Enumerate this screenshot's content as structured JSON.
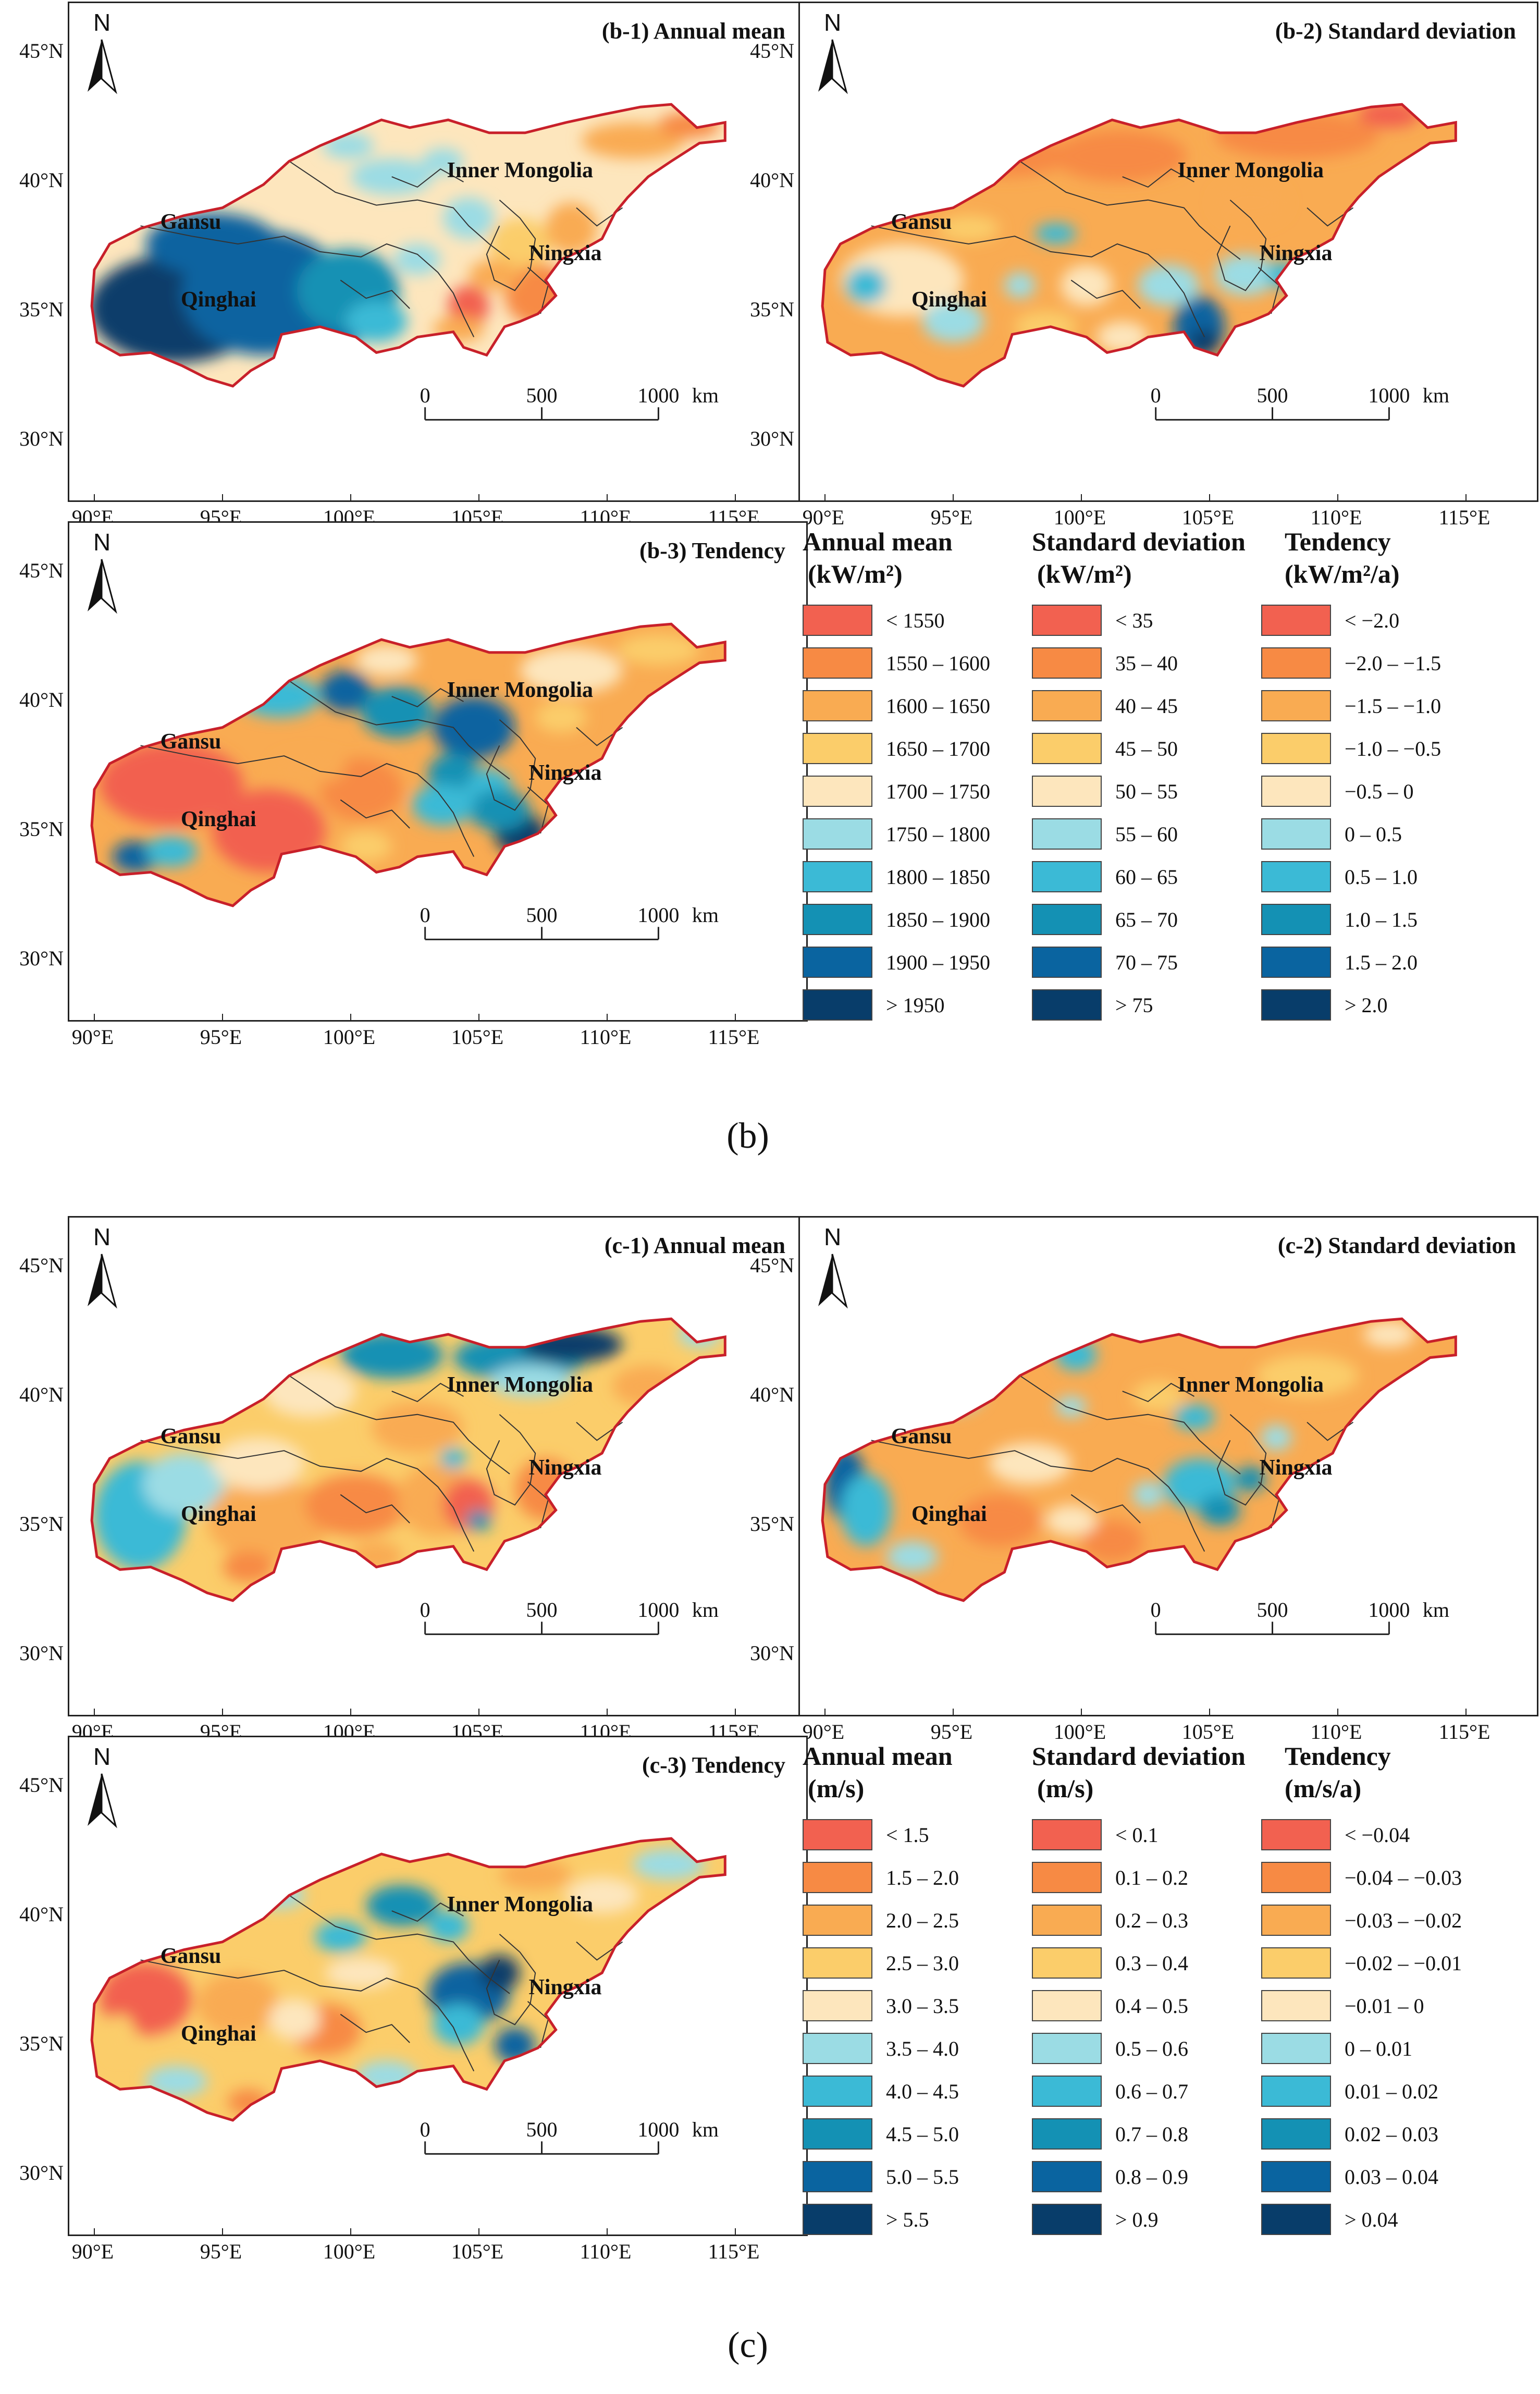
{
  "palette": [
    "#f26150",
    "#f78a44",
    "#f9ab52",
    "#fbcd6a",
    "#fde6bd",
    "#9bdce4",
    "#3bbad6",
    "#1491b4",
    "#0a64a0",
    "#083d6a"
  ],
  "boundary_color": "#c8202a",
  "sections": [
    {
      "caption": "(b)",
      "panels": [
        {
          "title": "(b-1)  Annual mean",
          "field": "annual_mean",
          "scale": [
            "0",
            "500",
            "1000",
            "km"
          ]
        },
        {
          "title": "(b-2)  Standard deviation",
          "field": "std_dev",
          "scale": [
            "0",
            "500",
            "1000",
            "km"
          ]
        },
        {
          "title": "(b-3)  Tendency",
          "field": "tendency",
          "scale": [
            "0",
            "500",
            "1000",
            "km"
          ]
        }
      ],
      "legend": [
        {
          "head1": "Annual mean",
          "head2": "(kW/m²)",
          "labels": [
            "< 1550",
            "1550 – 1600",
            "1600 – 1650",
            "1650 – 1700",
            "1700 – 1750",
            "1750 – 1800",
            "1800 – 1850",
            "1850 – 1900",
            "1900 – 1950",
            "> 1950"
          ]
        },
        {
          "head1": "Standard deviation",
          "head2": "(kW/m²)",
          "labels": [
            "< 35",
            "35 – 40",
            "40 – 45",
            "45 – 50",
            "50 – 55",
            "55 – 60",
            "60 – 65",
            "65 – 70",
            "70 – 75",
            "> 75"
          ]
        },
        {
          "head1": "Tendency",
          "head2": "(kW/m²/a)",
          "labels": [
            "< −2.0",
            "−2.0 – −1.5",
            "−1.5 – −1.0",
            "−1.0 – −0.5",
            "−0.5 – 0",
            "0 – 0.5",
            "0.5 – 1.0",
            "1.0 – 1.5",
            "1.5 – 2.0",
            "> 2.0"
          ]
        }
      ]
    },
    {
      "caption": "(c)",
      "panels": [
        {
          "title": "(c-1)  Annual mean",
          "field": "annual_mean",
          "scale": [
            "0",
            "500",
            "1000",
            "km"
          ]
        },
        {
          "title": "(c-2)  Standard deviation",
          "field": "std_dev",
          "scale": [
            "0",
            "500",
            "1000",
            "km"
          ]
        },
        {
          "title": "(c-3)  Tendency",
          "field": "tendency",
          "scale": [
            "0",
            "500",
            "1000",
            "km"
          ]
        }
      ],
      "legend": [
        {
          "head1": "Annual mean",
          "head2": "(m/s)",
          "labels": [
            "< 1.5",
            "1.5 – 2.0",
            "2.0 – 2.5",
            "2.5 – 3.0",
            "3.0 – 3.5",
            "3.5 – 4.0",
            "4.0 – 4.5",
            "4.5 – 5.0",
            "5.0 – 5.5",
            "> 5.5"
          ]
        },
        {
          "head1": "Standard deviation",
          "head2": "(m/s)",
          "labels": [
            "< 0.1",
            "0.1 – 0.2",
            "0.2 – 0.3",
            "0.3 – 0.4",
            "0.4 – 0.5",
            "0.5 – 0.6",
            "0.6 – 0.7",
            "0.7 – 0.8",
            "0.8 – 0.9",
            "> 0.9"
          ]
        },
        {
          "head1": "Tendency",
          "head2": "(m/s/a)",
          "labels": [
            "< −0.04",
            "−0.04 – −0.03",
            "−0.03 – −0.02",
            "−0.02 – −0.01",
            "−0.01 – 0",
            "0 – 0.01",
            "0.01 – 0.02",
            "0.02 – 0.03",
            "0.03 – 0.04",
            "> 0.04"
          ]
        }
      ]
    }
  ],
  "map_labels": {
    "north": "N",
    "provinces": [
      "Inner Mongolia",
      "Gansu",
      "Ningxia",
      "Qinghai"
    ],
    "lat_ticks": [
      "45°N",
      "40°N",
      "35°N",
      "30°N"
    ],
    "lon_ticks": [
      "90°E",
      "95°E",
      "100°E",
      "105°E",
      "110°E",
      "115°E"
    ]
  }
}
